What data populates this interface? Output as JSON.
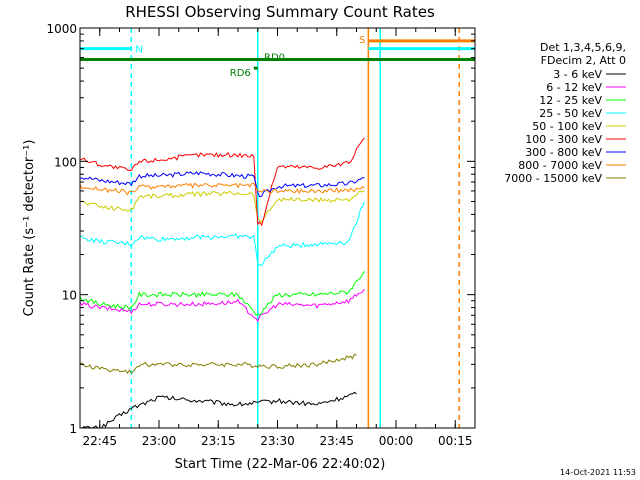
{
  "chart_data": {
    "type": "line",
    "title": "RHESSI Observing Summary Count Rates",
    "xlabel": "Start Time (22-Mar-06 22:40:02)",
    "ylabel": "Count Rate (s⁻¹ detector⁻¹)",
    "y_scale": "log",
    "ylim": [
      1,
      1000
    ],
    "xlim": [
      "22:40",
      "00:20"
    ],
    "x_ticks": [
      "22:45",
      "23:00",
      "23:15",
      "23:30",
      "23:45",
      "00:00",
      "00:15"
    ],
    "y_ticks": [
      "1",
      "10",
      "100",
      "1000"
    ],
    "grid": false,
    "legend_position": "right",
    "legend_header": [
      "Det 1,3,4,5,6,9,",
      "FDecim 2, Att 0"
    ],
    "colors": {
      "3-6": "#000000",
      "6-12": "#ff00ff",
      "12-25": "#00ff00",
      "25-50": "#00ffff",
      "50-100": "#cccc00",
      "100-300": "#ff0000",
      "300-800": "#0000ff",
      "800-7000": "#ff8000",
      "7000-15000": "#808000"
    },
    "series": [
      {
        "name": "3 - 6 keV",
        "key": "3-6",
        "x": [
          "22:40",
          "22:45",
          "22:53",
          "23:00",
          "23:10",
          "23:20",
          "23:30",
          "23:40",
          "23:50"
        ],
        "values": [
          1.0,
          1.0,
          1.4,
          1.7,
          1.6,
          1.5,
          1.6,
          1.5,
          1.8
        ]
      },
      {
        "name": "6 - 12 keV",
        "key": "6-12",
        "x": [
          "22:40",
          "22:45",
          "22:53",
          "22:55",
          "23:00",
          "23:10",
          "23:20",
          "23:25",
          "23:30",
          "23:40",
          "23:48",
          "23:52"
        ],
        "values": [
          8.5,
          8.0,
          7.5,
          8.5,
          8.5,
          8.5,
          8.8,
          6.5,
          8.5,
          8.3,
          9.0,
          11
        ]
      },
      {
        "name": "12 - 25 keV",
        "key": "12-25",
        "x": [
          "22:40",
          "22:45",
          "22:53",
          "22:55",
          "23:00",
          "23:10",
          "23:20",
          "23:25",
          "23:30",
          "23:40",
          "23:48",
          "23:52"
        ],
        "values": [
          9.5,
          8.5,
          8.0,
          10,
          10,
          10,
          10,
          7,
          10,
          10,
          10.5,
          15
        ]
      },
      {
        "name": "25 - 50 keV",
        "key": "25-50",
        "x": [
          "22:40",
          "22:45",
          "22:53",
          "22:55",
          "23:00",
          "23:10",
          "23:20",
          "23:24",
          "23:25",
          "23:26",
          "23:30",
          "23:40",
          "23:48",
          "23:52"
        ],
        "values": [
          27,
          25,
          24,
          27,
          26,
          27,
          27.5,
          27,
          17,
          17,
          23,
          24,
          25,
          50
        ]
      },
      {
        "name": "50 - 100 keV",
        "key": "50-100",
        "x": [
          "22:40",
          "22:45",
          "22:53",
          "22:55",
          "23:00",
          "23:10",
          "23:20",
          "23:24",
          "23:25",
          "23:26",
          "23:30",
          "23:40",
          "23:48",
          "23:52"
        ],
        "values": [
          50,
          46,
          43,
          55,
          55,
          57,
          58,
          57,
          36,
          36,
          52,
          51,
          52,
          60
        ]
      },
      {
        "name": "100 - 300 keV",
        "key": "100-300",
        "x": [
          "22:40",
          "22:45",
          "22:53",
          "22:55",
          "23:00",
          "23:10",
          "23:20",
          "23:24",
          "23:25",
          "23:26",
          "23:30",
          "23:40",
          "23:48",
          "23:52"
        ],
        "values": [
          105,
          95,
          85,
          100,
          103,
          112,
          112,
          110,
          34,
          34,
          92,
          90,
          97,
          150
        ]
      },
      {
        "name": "300 - 800 keV",
        "key": "300-800",
        "x": [
          "22:40",
          "22:45",
          "22:53",
          "22:55",
          "23:00",
          "23:10",
          "23:20",
          "23:24",
          "23:25",
          "23:26",
          "23:30",
          "23:40",
          "23:48",
          "23:52"
        ],
        "values": [
          77,
          72,
          68,
          78,
          78,
          82,
          78,
          77,
          56,
          56,
          65,
          66,
          68,
          75
        ]
      },
      {
        "name": "800 - 7000 keV",
        "key": "800-7000",
        "x": [
          "22:40",
          "22:45",
          "22:53",
          "22:55",
          "23:00",
          "23:10",
          "23:20",
          "23:24",
          "23:25",
          "23:26",
          "23:30",
          "23:40",
          "23:48",
          "23:52"
        ],
        "values": [
          65,
          62,
          58,
          64,
          65,
          66,
          66,
          66,
          60,
          60,
          60,
          60,
          61,
          63
        ]
      },
      {
        "name": "7000 - 15000 keV",
        "key": "7000-15000",
        "x": [
          "22:40",
          "22:45",
          "22:53",
          "22:55",
          "23:00",
          "23:10",
          "23:20",
          "23:30",
          "23:40",
          "23:50"
        ],
        "values": [
          3.0,
          2.8,
          2.6,
          3.0,
          3.0,
          3.0,
          3.0,
          2.9,
          3.0,
          3.5
        ]
      }
    ],
    "flag_bars": [
      {
        "label": "N",
        "color": "#00ffff",
        "level": 700,
        "segments": [
          [
            "22:40",
            "22:53"
          ],
          [
            "23:53",
            "00:20"
          ]
        ]
      },
      {
        "label": "S",
        "color": "#ff8000",
        "level": 800,
        "segments": [
          [
            "23:53",
            "00:20"
          ]
        ]
      },
      {
        "label": "RD0",
        "color": "#008000",
        "level": 580,
        "segments": [
          [
            "22:40",
            "00:20"
          ]
        ]
      },
      {
        "label": "RD6",
        "color": "#008000",
        "level": 500,
        "segments": [
          [
            "23:24",
            "23:25"
          ]
        ]
      }
    ],
    "vlines": [
      {
        "color": "#00ffff",
        "style": "dashed",
        "x": "22:53"
      },
      {
        "color": "#00ffff",
        "style": "solid",
        "x": "23:25"
      },
      {
        "color": "#00ffff",
        "style": "solid",
        "x": "23:56"
      },
      {
        "color": "#ff8000",
        "style": "solid",
        "x": "23:53"
      },
      {
        "color": "#ff8000",
        "style": "dashed",
        "x": "00:16"
      }
    ]
  },
  "footer": {
    "timestamp": "14-Oct-2021 11:53"
  }
}
